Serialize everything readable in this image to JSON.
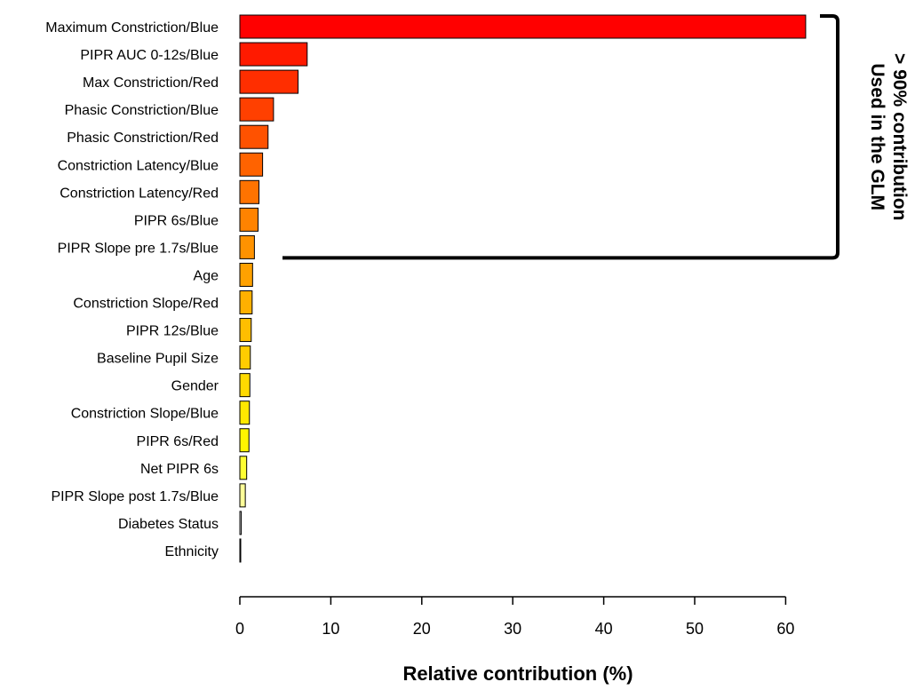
{
  "chart_data": {
    "type": "bar",
    "orientation": "horizontal",
    "categories": [
      "Maximum Constriction/Blue",
      "PIPR AUC 0-12s/Blue",
      "Max Constriction/Red",
      "Phasic Constriction/Blue",
      "Phasic Constriction/Red",
      "Constriction Latency/Blue",
      "Constriction Latency/Red",
      "PIPR 6s/Blue",
      "PIPR Slope pre 1.7s/Blue",
      "Age",
      "Constriction Slope/Red",
      "PIPR 12s/Blue",
      "Baseline Pupil Size",
      "Gender",
      "Constriction Slope/Blue",
      "PIPR 6s/Red",
      "Net PIPR 6s",
      "PIPR Slope post 1.7s/Blue",
      "Diabetes Status",
      "Ethnicity"
    ],
    "values": [
      62.2,
      7.4,
      6.4,
      3.7,
      3.1,
      2.5,
      2.1,
      2.0,
      1.6,
      1.4,
      1.35,
      1.25,
      1.15,
      1.1,
      1.05,
      1.0,
      0.75,
      0.6,
      0.15,
      0.05
    ],
    "colors": [
      "#ff0000",
      "#ff1a00",
      "#ff2e00",
      "#ff4000",
      "#ff5200",
      "#ff6300",
      "#ff7300",
      "#ff8300",
      "#ff9200",
      "#ffa100",
      "#ffb000",
      "#ffbe00",
      "#ffcc00",
      "#ffda00",
      "#ffe800",
      "#fff500",
      "#ffff33",
      "#ffff99",
      "#ffffff",
      "#ffffff"
    ],
    "xlabel": "Relative contribution (%)",
    "ylabel": "",
    "xlim": [
      0,
      62.5
    ],
    "xticks": [
      0,
      10,
      20,
      30,
      40,
      50,
      60
    ],
    "grid": false,
    "legend": "none",
    "annotation": {
      "lines": [
        "> 90% contribution",
        "Used in the GLM"
      ],
      "bracket_from_category": 0,
      "bracket_to_category": 8
    }
  }
}
